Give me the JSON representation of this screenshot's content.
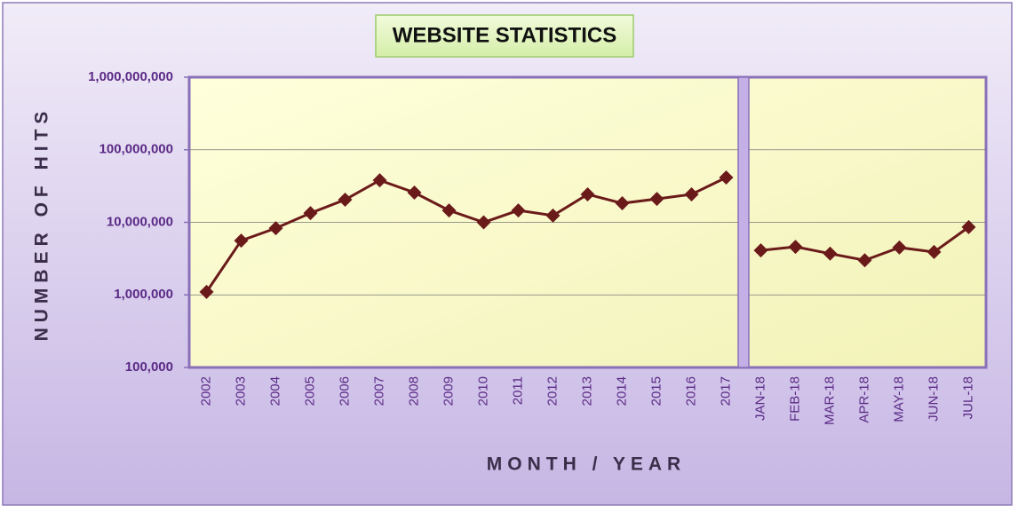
{
  "chart_data": {
    "type": "line",
    "title": "WEBSITE STATISTICS",
    "x_label": "MONTH / YEAR",
    "y_label": "NUMBER OF HITS",
    "categories": [
      "2002",
      "2003",
      "2004",
      "2005",
      "2006",
      "2007",
      "2008",
      "2009",
      "2010",
      "2011",
      "2012",
      "2013",
      "2014",
      "2015",
      "2016",
      "2017",
      "JAN-18",
      "FEB-18",
      "MAR-18",
      "APR-18",
      "MAY-18",
      "JUN-18",
      "JUL-18"
    ],
    "series": [
      {
        "color": "#6b1a1a",
        "values": [
          1100000,
          5600000,
          8300000,
          13400000,
          20500000,
          38000000,
          25700000,
          14600000,
          10000000,
          14600000,
          12400000,
          24300000,
          18300000,
          21000000,
          24300000,
          41500000,
          null,
          null,
          null,
          null,
          null,
          null,
          null
        ]
      },
      {
        "color": "#6b1a1a",
        "values": [
          null,
          null,
          null,
          null,
          null,
          null,
          null,
          null,
          null,
          null,
          null,
          null,
          null,
          null,
          null,
          null,
          4100000,
          4600000,
          3700000,
          3000000,
          4500000,
          3900000,
          8600000
        ]
      }
    ],
    "log_scale": true,
    "ylim": [
      100000,
      1000000000
    ],
    "yticks": [
      {
        "value": 100000,
        "label": "100,000"
      },
      {
        "value": 1000000,
        "label": "1,000,000"
      },
      {
        "value": 10000000,
        "label": "10,000,000"
      },
      {
        "value": 100000000,
        "label": "100,000,000"
      },
      {
        "value": 1000000000,
        "label": "1,000,000,000"
      }
    ],
    "grid": true
  }
}
